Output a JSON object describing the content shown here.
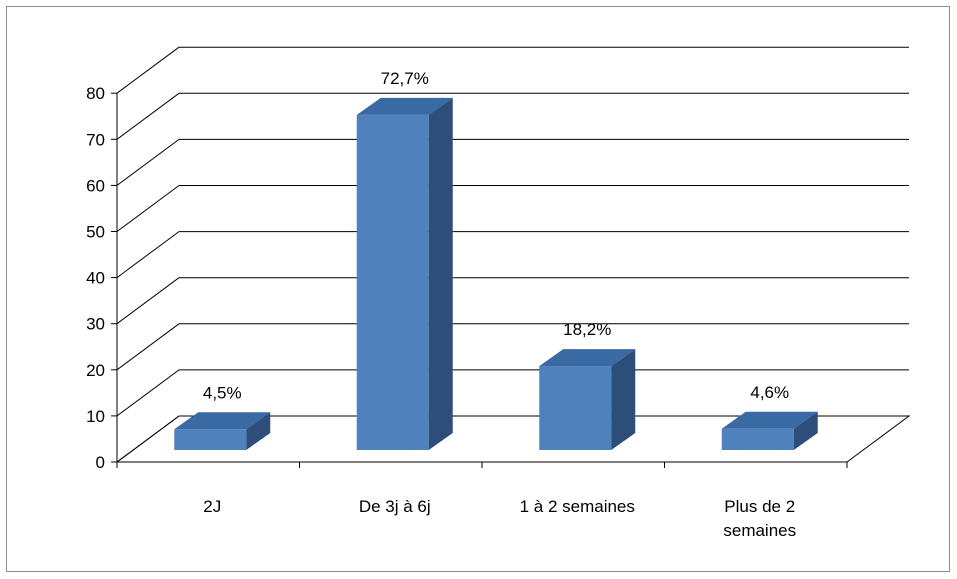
{
  "chart_data": {
    "type": "bar",
    "title": "",
    "xlabel": "",
    "ylabel": "",
    "ylim": [
      0,
      80
    ],
    "yticks": [
      "0",
      "10",
      "20",
      "30",
      "40",
      "50",
      "60",
      "70",
      "80"
    ],
    "grid": true,
    "legend": "none",
    "three_d": true,
    "categories": [
      [
        "2J"
      ],
      [
        "De 3j à 6j"
      ],
      [
        "1 à 2 semaines"
      ],
      [
        "Plus de 2",
        "semaines"
      ]
    ],
    "values": [
      4.5,
      72.7,
      18.2,
      4.6
    ],
    "data_labels": [
      "4,5%",
      "72,7%",
      "18,2%",
      "4,6%"
    ],
    "colors": {
      "bar_front": "#4f81bd",
      "bar_top": "#3a6aa3",
      "bar_side": "#2e4e7a",
      "grid": "#000000"
    }
  }
}
